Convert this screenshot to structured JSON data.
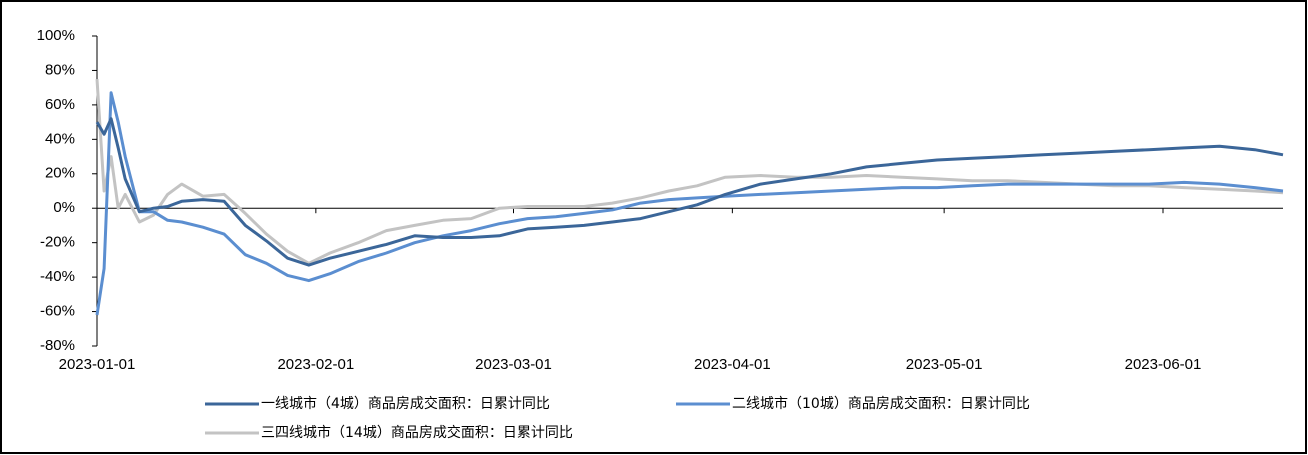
{
  "chart_data": {
    "type": "line",
    "x": [
      "2023-01-01",
      "2023-01-02",
      "2023-01-03",
      "2023-01-04",
      "2023-01-05",
      "2023-01-07",
      "2023-01-09",
      "2023-01-11",
      "2023-01-13",
      "2023-01-16",
      "2023-01-19",
      "2023-01-22",
      "2023-01-25",
      "2023-01-28",
      "2023-01-31",
      "2023-02-03",
      "2023-02-07",
      "2023-02-11",
      "2023-02-15",
      "2023-02-19",
      "2023-02-23",
      "2023-02-27",
      "2023-03-03",
      "2023-03-07",
      "2023-03-11",
      "2023-03-15",
      "2023-03-19",
      "2023-03-23",
      "2023-03-27",
      "2023-03-31",
      "2023-04-05",
      "2023-04-10",
      "2023-04-15",
      "2023-04-20",
      "2023-04-25",
      "2023-04-30",
      "2023-05-05",
      "2023-05-10",
      "2023-05-15",
      "2023-05-20",
      "2023-05-25",
      "2023-05-30",
      "2023-06-04",
      "2023-06-09",
      "2023-06-14",
      "2023-06-18"
    ],
    "series": [
      {
        "name": "一线城市（4城）商品房成交面积：日累计同比",
        "color": "#3b6699",
        "values": [
          50,
          43,
          52,
          35,
          17,
          -2,
          0,
          1,
          4,
          5,
          4,
          -10,
          -19,
          -29,
          -33,
          -29,
          -25,
          -21,
          -16,
          -17,
          -17,
          -16,
          -12,
          -11,
          -10,
          -8,
          -6,
          -2,
          2,
          8,
          14,
          17,
          20,
          24,
          26,
          28,
          29,
          30,
          31,
          32,
          33,
          34,
          35,
          36,
          34,
          31
        ]
      },
      {
        "name": "二线城市（10城）商品房成交面积：日累计同比",
        "color": "#5b8ed0",
        "values": [
          -62,
          -35,
          67,
          50,
          30,
          -2,
          -2,
          -7,
          -8,
          -11,
          -15,
          -27,
          -32,
          -39,
          -42,
          -38,
          -31,
          -26,
          -20,
          -16,
          -13,
          -9,
          -6,
          -5,
          -3,
          -1,
          3,
          5,
          6,
          7,
          8,
          9,
          10,
          11,
          12,
          12,
          13,
          14,
          14,
          14,
          14,
          14,
          15,
          14,
          12,
          10
        ]
      },
      {
        "name": "三四线城市（14城）商品房成交面积：日累计同比",
        "color": "#c3c3c3",
        "values": [
          75,
          10,
          30,
          0,
          8,
          -8,
          -4,
          8,
          14,
          7,
          8,
          -3,
          -15,
          -25,
          -32,
          -26,
          -20,
          -13,
          -10,
          -7,
          -6,
          0,
          1,
          1,
          1,
          3,
          6,
          10,
          13,
          18,
          19,
          18,
          18,
          19,
          18,
          17,
          16,
          16,
          15,
          14,
          13,
          13,
          12,
          11,
          10,
          9
        ]
      }
    ],
    "xlim": [
      "2023-01-01",
      "2023-06-18"
    ],
    "xticks": [
      "2023-01-01",
      "2023-02-01",
      "2023-03-01",
      "2023-04-01",
      "2023-05-01",
      "2023-06-01"
    ],
    "ylim": [
      -80,
      100
    ],
    "yticks": [
      {
        "value": -80,
        "label": "-80%"
      },
      {
        "value": -60,
        "label": "-60%"
      },
      {
        "value": -40,
        "label": "-40%"
      },
      {
        "value": -20,
        "label": "-20%"
      },
      {
        "value": 0,
        "label": "0%"
      },
      {
        "value": 20,
        "label": "20%"
      },
      {
        "value": 40,
        "label": "40%"
      },
      {
        "value": 60,
        "label": "60%"
      },
      {
        "value": 80,
        "label": "80%"
      },
      {
        "value": 100,
        "label": "100%"
      }
    ]
  }
}
